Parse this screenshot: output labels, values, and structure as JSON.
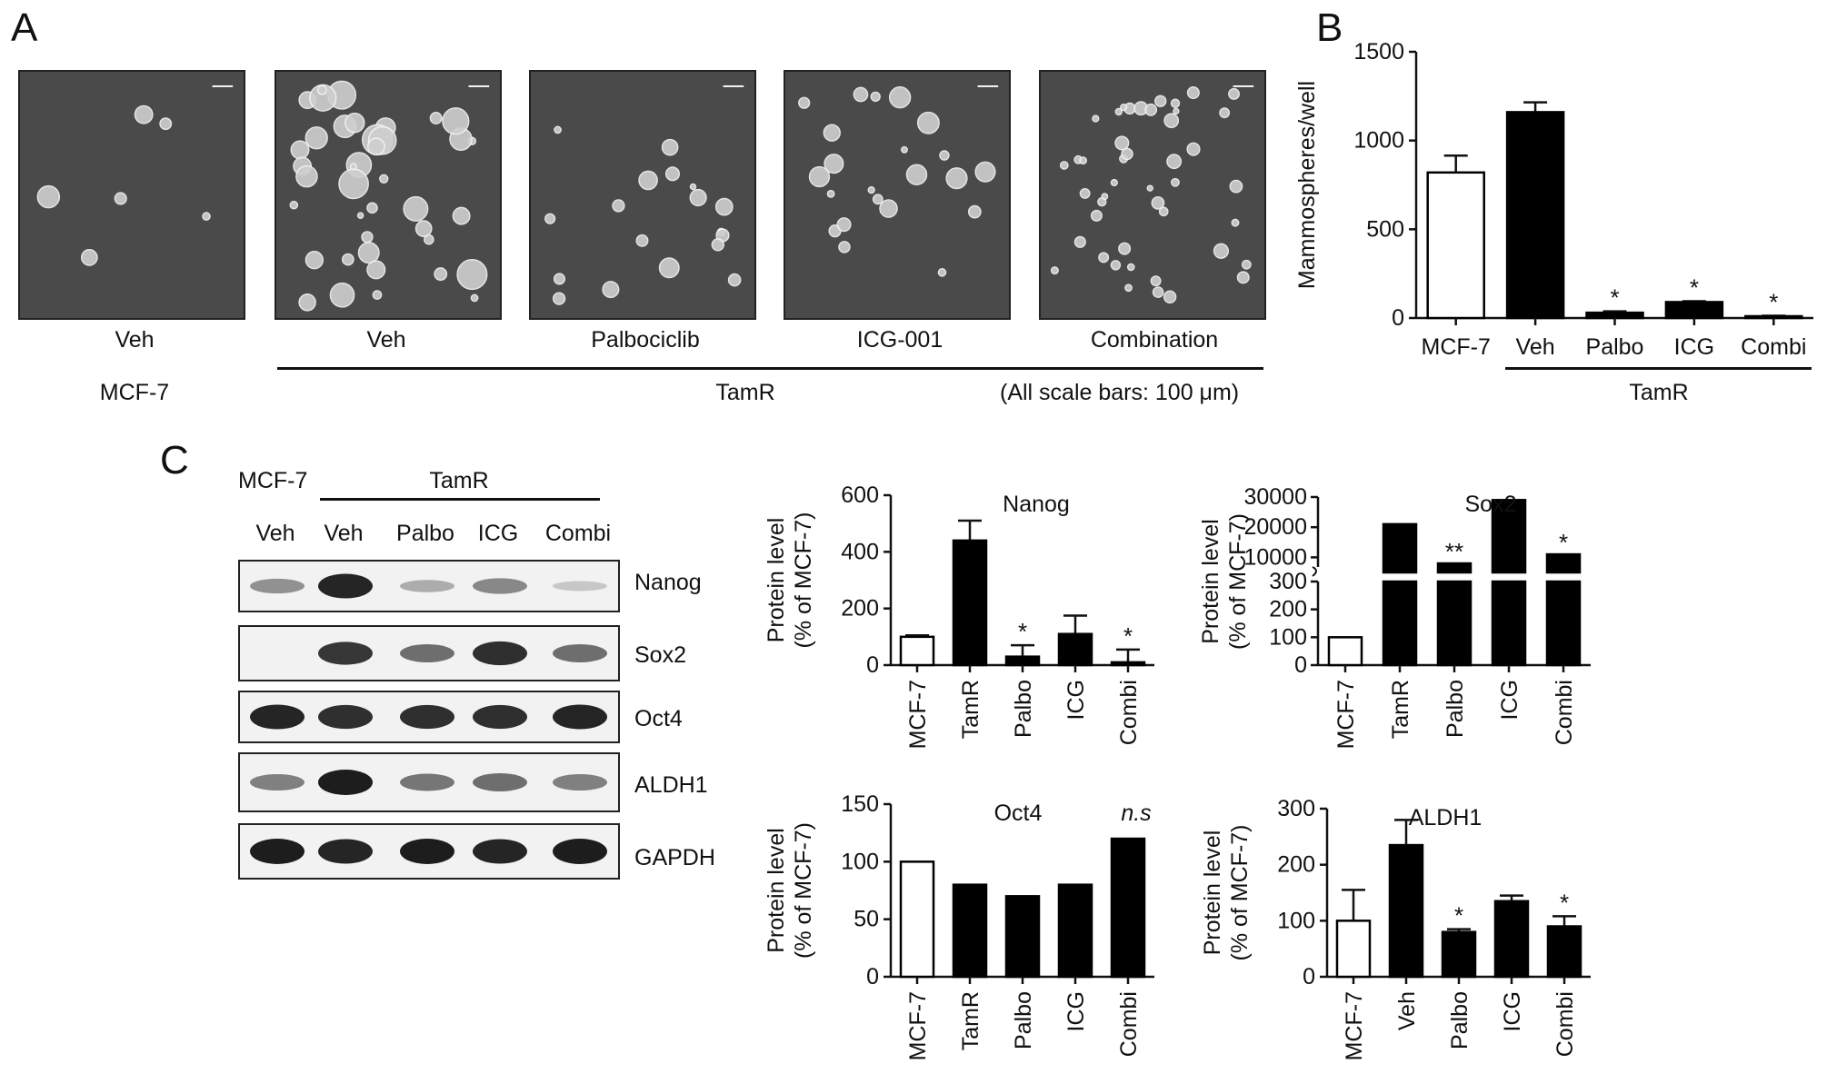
{
  "panel_a": {
    "letter": "A",
    "images": [
      {
        "label": "Veh"
      },
      {
        "label": "Veh"
      },
      {
        "label": "Palbociclib"
      },
      {
        "label": "ICG-001"
      },
      {
        "label": "Combination"
      }
    ],
    "group_left": "MCF-7",
    "group_right": "TamR",
    "scale_note": "(All scale bars: 100 μm)"
  },
  "panel_b": {
    "letter": "B",
    "group_label": "TamR"
  },
  "panel_c": {
    "letter": "C",
    "blot": {
      "group_left": "MCF-7",
      "group_right": "TamR",
      "lanes": [
        "Veh",
        "Veh",
        "Palbo",
        "ICG",
        "Combi"
      ],
      "proteins": [
        "Nanog",
        "Sox2",
        "Oct4",
        "ALDH1",
        "GAPDH"
      ],
      "band_intensity": [
        [
          0.35,
          0.95,
          0.2,
          0.4,
          0.05
        ],
        [
          0.0,
          0.85,
          0.55,
          0.9,
          0.55
        ],
        [
          0.95,
          0.9,
          0.9,
          0.9,
          0.95
        ],
        [
          0.45,
          1.0,
          0.5,
          0.55,
          0.45
        ],
        [
          1.0,
          0.95,
          1.0,
          0.95,
          1.0
        ]
      ]
    }
  },
  "chart_data": [
    {
      "type": "bar",
      "title": "",
      "ylabel": "Mammospheres/well",
      "xlabel": "",
      "categories": [
        "MCF-7",
        "Veh",
        "Palbo",
        "ICG",
        "Combi"
      ],
      "values": [
        820,
        1160,
        30,
        90,
        10
      ],
      "errors": [
        95,
        55,
        8,
        5,
        3
      ],
      "fill": [
        "white",
        "black",
        "black",
        "black",
        "black"
      ],
      "significance": [
        "",
        "",
        "*",
        "*",
        "*"
      ],
      "ylim": [
        0,
        1500
      ],
      "yticks": [
        0,
        500,
        1000,
        1500
      ]
    },
    {
      "type": "bar",
      "title": "Nanog",
      "ylabel": "Protein level\n(% of MCF-7)",
      "categories": [
        "MCF-7",
        "TamR",
        "Palbo",
        "ICG",
        "Combi"
      ],
      "values": [
        100,
        440,
        30,
        110,
        10
      ],
      "errors": [
        5,
        70,
        40,
        65,
        45
      ],
      "fill": [
        "white",
        "black",
        "black",
        "black",
        "black"
      ],
      "significance": [
        "",
        "",
        "*",
        "",
        "*"
      ],
      "ylim": [
        0,
        600
      ],
      "yticks": [
        0,
        200,
        400,
        600
      ]
    },
    {
      "type": "bar",
      "title": "Sox2",
      "ylabel": "Protein level\n(% of MCF-7)",
      "categories": [
        "MCF-7",
        "TamR",
        "Palbo",
        "ICG",
        "Combi"
      ],
      "values": [
        100,
        21000,
        8000,
        29000,
        11000
      ],
      "errors": [
        5,
        0,
        0,
        0,
        0
      ],
      "fill": [
        "white",
        "black",
        "black",
        "black",
        "black"
      ],
      "significance": [
        "",
        "",
        "**",
        "",
        "*"
      ],
      "y_axis_break": true,
      "yticks_lower": [
        0,
        100,
        200,
        300
      ],
      "yticks_upper": [
        10000,
        20000,
        30000
      ]
    },
    {
      "type": "bar",
      "title": "Oct4",
      "ylabel": "Protein level\n(% of MCF-7)",
      "categories": [
        "MCF-7",
        "TamR",
        "Palbo",
        "ICG",
        "Combi"
      ],
      "values": [
        100,
        80,
        70,
        80,
        120
      ],
      "errors": [
        1,
        1,
        1,
        1,
        1
      ],
      "fill": [
        "white",
        "black",
        "black",
        "black",
        "black"
      ],
      "significance": [
        "",
        "",
        "",
        "",
        ""
      ],
      "annotation": "n.s",
      "ylim": [
        0,
        150
      ],
      "yticks": [
        0,
        50,
        100,
        150
      ]
    },
    {
      "type": "bar",
      "title": "ALDH1",
      "ylabel": "Protein level\n(% of MCF-7)",
      "categories": [
        "MCF-7",
        "Veh",
        "Palbo",
        "ICG",
        "Combi"
      ],
      "values": [
        100,
        235,
        80,
        135,
        90
      ],
      "errors": [
        55,
        45,
        5,
        10,
        18
      ],
      "fill": [
        "white",
        "black",
        "black",
        "black",
        "black"
      ],
      "significance": [
        "",
        "",
        "*",
        "",
        "*"
      ],
      "ylim": [
        0,
        300
      ],
      "yticks": [
        0,
        100,
        200,
        300
      ]
    }
  ]
}
